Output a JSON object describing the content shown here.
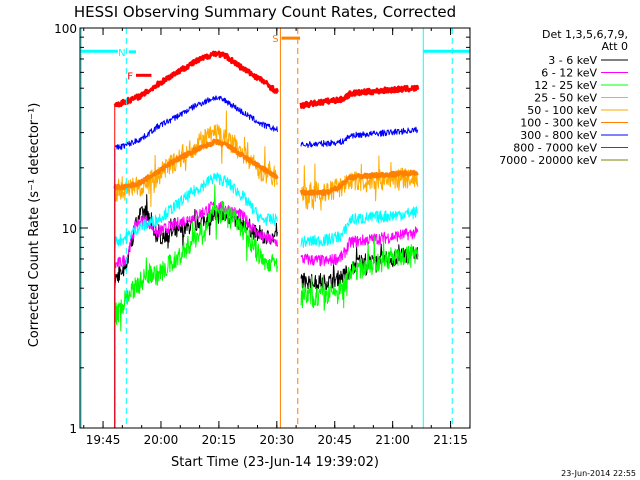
{
  "chart_data": {
    "type": "line",
    "title": "HESSI Observing Summary Count Rates, Corrected",
    "xlabel": "Start Time (23-Jun-14 19:39:02)",
    "ylabel": "Corrected Count Rate (s⁻¹ detector⁻¹)",
    "y_scale": "log",
    "ylim": [
      1,
      100
    ],
    "x_range_minutes": [
      0,
      101
    ],
    "x_origin": "19:39:02",
    "x_ticks": [
      {
        "label": "19:45",
        "min": 5.97
      },
      {
        "label": "20:00",
        "min": 20.97
      },
      {
        "label": "20:15",
        "min": 35.97
      },
      {
        "label": "20:30",
        "min": 50.97
      },
      {
        "label": "20:45",
        "min": 65.97
      },
      {
        "label": "21:00",
        "min": 80.97
      },
      {
        "label": "21:15",
        "min": 95.97
      }
    ],
    "y_ticks": [
      {
        "label": "1",
        "value": 1
      },
      {
        "label": "10",
        "value": 10
      },
      {
        "label": "100",
        "value": 100
      }
    ],
    "legend": {
      "header": [
        "Det 1,3,5,6,7,9,",
        "Att 0"
      ],
      "placement": "right"
    },
    "gaps_minutes": [
      [
        51.2,
        57.2
      ]
    ],
    "series": [
      {
        "name": "3 - 6 keV",
        "color": "#000000",
        "noise": 0.09,
        "points": [
          [
            9,
            5.5
          ],
          [
            12,
            6.5
          ],
          [
            15,
            11.5
          ],
          [
            17,
            12
          ],
          [
            20,
            9
          ],
          [
            25,
            9.5
          ],
          [
            30,
            10.5
          ],
          [
            35,
            11.5
          ],
          [
            38,
            11.5
          ],
          [
            42,
            10.5
          ],
          [
            47,
            9
          ],
          [
            51,
            9
          ],
          [
            57.5,
            5.5
          ],
          [
            62,
            5.3
          ],
          [
            66,
            5.5
          ],
          [
            70,
            6
          ],
          [
            72,
            6.8
          ],
          [
            80,
            7
          ],
          [
            87.5,
            7.5
          ]
        ]
      },
      {
        "name": "6 - 12 keV",
        "color": "#ff00ff",
        "noise": 0.07,
        "points": [
          [
            9,
            6.5
          ],
          [
            12,
            7
          ],
          [
            14.5,
            10.5
          ],
          [
            17,
            11
          ],
          [
            20,
            9.5
          ],
          [
            25,
            10.5
          ],
          [
            30,
            11.5
          ],
          [
            35,
            13
          ],
          [
            38,
            12.5
          ],
          [
            42,
            11.5
          ],
          [
            47,
            9
          ],
          [
            51,
            8.5
          ],
          [
            57.5,
            7
          ],
          [
            64,
            6.8
          ],
          [
            68,
            7.2
          ],
          [
            70,
            8.5
          ],
          [
            80,
            9
          ],
          [
            87.5,
            9.5
          ]
        ]
      },
      {
        "name": "12 - 25 keV",
        "color": "#00ff00",
        "noise": 0.12,
        "points": [
          [
            9,
            3.5
          ],
          [
            12,
            4.5
          ],
          [
            15,
            5.2
          ],
          [
            18,
            6
          ],
          [
            20,
            5.8
          ],
          [
            25,
            7
          ],
          [
            30,
            9
          ],
          [
            35,
            12
          ],
          [
            38,
            12
          ],
          [
            42,
            10
          ],
          [
            47,
            7
          ],
          [
            51,
            6.5
          ],
          [
            57.5,
            4.5
          ],
          [
            64,
            4.6
          ],
          [
            68,
            5
          ],
          [
            70,
            6
          ],
          [
            80,
            7
          ],
          [
            87.5,
            7.5
          ]
        ]
      },
      {
        "name": "25 - 50 keV",
        "color": "#00ffff",
        "noise": 0.07,
        "points": [
          [
            9,
            8.5
          ],
          [
            12,
            9
          ],
          [
            15,
            10
          ],
          [
            20,
            11
          ],
          [
            25,
            13
          ],
          [
            30,
            15.5
          ],
          [
            35,
            18
          ],
          [
            38,
            17
          ],
          [
            42,
            14.5
          ],
          [
            47,
            11
          ],
          [
            51,
            11
          ],
          [
            57.5,
            8.5
          ],
          [
            64,
            8.7
          ],
          [
            68,
            9.2
          ],
          [
            70,
            11
          ],
          [
            80,
            11.5
          ],
          [
            87.5,
            12
          ]
        ]
      },
      {
        "name": "50 - 100 keV",
        "color": "#ffaa00",
        "noise": 0.12,
        "points": [
          [
            9,
            15
          ],
          [
            12,
            15.5
          ],
          [
            15,
            16
          ],
          [
            20,
            18
          ],
          [
            25,
            22
          ],
          [
            30,
            26
          ],
          [
            35,
            30
          ],
          [
            38,
            28
          ],
          [
            42,
            24
          ],
          [
            47,
            19
          ],
          [
            51,
            18
          ],
          [
            57.5,
            15
          ],
          [
            64,
            15
          ],
          [
            67,
            16
          ],
          [
            70,
            17
          ],
          [
            80,
            17.5
          ],
          [
            87.5,
            18
          ]
        ]
      },
      {
        "name": "100 - 300 keV",
        "color": "#ff7f00",
        "noise": 0.025,
        "points": [
          [
            9,
            16
          ],
          [
            12,
            16
          ],
          [
            16,
            17
          ],
          [
            20,
            19
          ],
          [
            25,
            22
          ],
          [
            30,
            24.5
          ],
          [
            35,
            27
          ],
          [
            38,
            26
          ],
          [
            42,
            23
          ],
          [
            47,
            20
          ],
          [
            51,
            18
          ],
          [
            57.5,
            15
          ],
          [
            64,
            15
          ],
          [
            67,
            16
          ],
          [
            70,
            18
          ],
          [
            80,
            18.5
          ],
          [
            87.5,
            19
          ]
        ]
      },
      {
        "name": "300 - 800 keV",
        "color": "#0000ff",
        "noise": 0.035,
        "points": [
          [
            9,
            25
          ],
          [
            12,
            26
          ],
          [
            16,
            28
          ],
          [
            20,
            32
          ],
          [
            25,
            36
          ],
          [
            30,
            41
          ],
          [
            35,
            45
          ],
          [
            38,
            43
          ],
          [
            42,
            38
          ],
          [
            47,
            33
          ],
          [
            51,
            31
          ],
          [
            57.5,
            26
          ],
          [
            64,
            26.5
          ],
          [
            68,
            27
          ],
          [
            70,
            29
          ],
          [
            80,
            30
          ],
          [
            87.5,
            31
          ]
        ]
      },
      {
        "name": "800 - 7000 keV",
        "color": "#ff0000",
        "noise": 0.03,
        "points": [
          [
            9,
            41
          ],
          [
            12,
            43
          ],
          [
            16,
            46
          ],
          [
            20,
            52
          ],
          [
            25,
            60
          ],
          [
            30,
            68
          ],
          [
            35,
            75
          ],
          [
            38,
            72
          ],
          [
            42,
            63
          ],
          [
            47,
            55
          ],
          [
            51,
            48
          ],
          [
            57.5,
            41
          ],
          [
            64,
            43
          ],
          [
            68,
            44
          ],
          [
            70,
            47
          ],
          [
            80,
            49
          ],
          [
            87.5,
            50
          ]
        ]
      },
      {
        "name": "7000 - 20000 keV",
        "color": "#808000",
        "noise": 0.0,
        "points": []
      }
    ],
    "att_state_lines": [
      {
        "color": "#00ffff",
        "y": 76.5,
        "x_range_minutes": [
          0,
          9.8
        ]
      },
      {
        "color": "#00ffff",
        "y": 76.5,
        "x_range_minutes": [
          89,
          101
        ]
      }
    ],
    "vertical_markers": [
      {
        "color": "#00ffff",
        "style": "solid",
        "min": 0.3
      },
      {
        "color": "#00ffff",
        "style": "dashed",
        "min": 12.0
      },
      {
        "color": "#00ffff",
        "style": "solid",
        "min": 88.9
      },
      {
        "color": "#00ffff",
        "style": "dashed",
        "min": 96.4
      },
      {
        "color": "#ff7f00",
        "style": "solid",
        "min": 51.9
      },
      {
        "color": "#ff7f00",
        "style": "dashed",
        "min": 56.4
      }
    ],
    "flags": [
      {
        "label": "F",
        "color": "#ff0000",
        "y": 58,
        "x_range_minutes": [
          14.5,
          18.5
        ]
      },
      {
        "label": "N",
        "color": "#00ffff",
        "y": 76,
        "x_range_minutes": [
          12.6,
          14.5
        ]
      },
      {
        "label": "S",
        "color": "#ff7f00",
        "y": 89,
        "x_range_minutes": [
          52.2,
          57.0
        ]
      }
    ],
    "footer_stamp": "23-Jun-2014 22:55"
  }
}
